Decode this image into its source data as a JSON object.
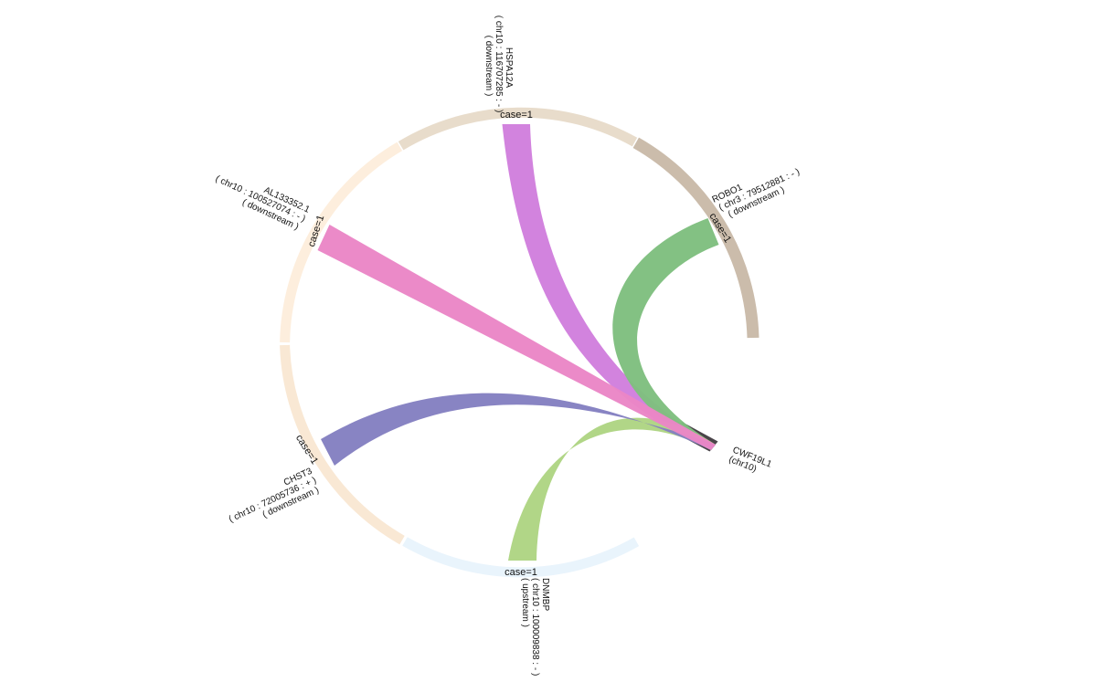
{
  "hub": {
    "gene": "CWF19L1",
    "chrom": "(chr10)",
    "color": "#4a4449"
  },
  "partners": [
    {
      "key": "hspa12a",
      "gene": "HSPA12A",
      "locus": "( chr10 : 116707285 : - )",
      "direction": "( downstream )",
      "case": "case=1",
      "ring_color": "#e8dccb",
      "ribbon_color": "#d17fdd"
    },
    {
      "key": "robo1",
      "gene": "ROBO1",
      "locus": "( chr3 : 79512881 : - )",
      "direction": "( downstream )",
      "case": "case=1",
      "ring_color": "#cbbcab",
      "ribbon_color": "#7fbf7f"
    },
    {
      "key": "dnmbp",
      "gene": "DNMBP",
      "locus": "( chr10 : 100009838 : - )",
      "direction": "( upstream )",
      "case": "case=1",
      "ring_color": "#e9f4fc",
      "ribbon_color": "#aed583"
    },
    {
      "key": "chst3",
      "gene": "CHST3",
      "locus": "( chr10 : 72005736 : + )",
      "direction": "( downstream )",
      "case": "case=1",
      "ring_color": "#f9e8d4",
      "ribbon_color": "#8480c1"
    },
    {
      "key": "al133352",
      "gene": "AL133352.1",
      "locus": "( chr10 : 100527074 : - )",
      "direction": "( downstream )",
      "case": "case=1",
      "ring_color": "#fdeedd",
      "ribbon_color": "#ea86c6"
    }
  ]
}
